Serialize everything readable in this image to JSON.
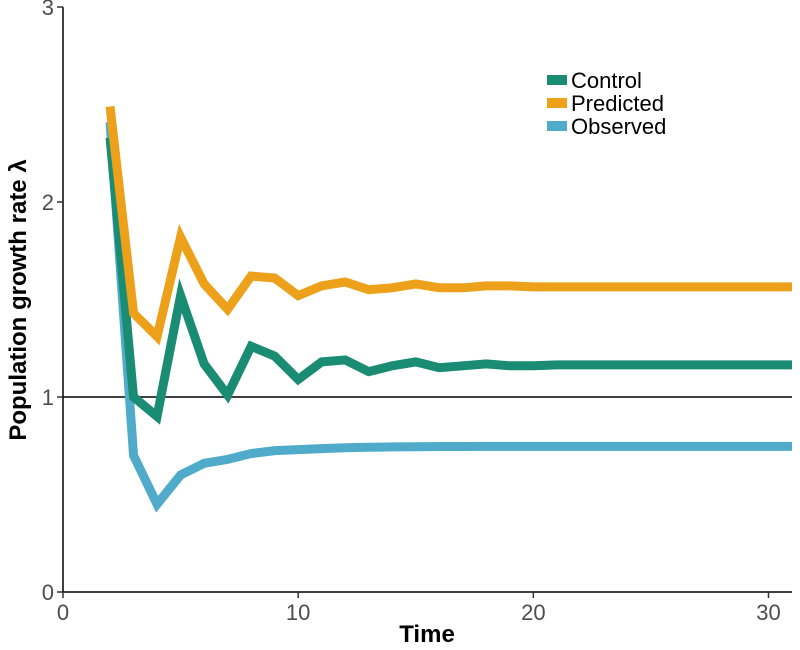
{
  "chart_data": {
    "type": "line",
    "title": "",
    "xlabel": "Time",
    "ylabel": "Population growth rate λ",
    "xlim": [
      0,
      31
    ],
    "ylim": [
      0,
      3
    ],
    "xticks": [
      0,
      10,
      20,
      30
    ],
    "yticks": [
      0,
      1,
      2,
      3
    ],
    "grid": false,
    "legend_position": "top-right",
    "reference_line_y": 1,
    "reference_line_color": "#000000",
    "x": [
      2,
      3,
      4,
      5,
      6,
      7,
      8,
      9,
      10,
      11,
      12,
      13,
      14,
      15,
      16,
      17,
      18,
      19,
      20,
      21,
      22,
      23,
      24,
      25,
      26,
      27,
      28,
      29,
      30,
      31
    ],
    "series": [
      {
        "name": "Control",
        "color": "#1a8c73",
        "values": [
          2.33,
          1.0,
          0.9,
          1.52,
          1.17,
          1.01,
          1.26,
          1.21,
          1.09,
          1.18,
          1.19,
          1.13,
          1.16,
          1.18,
          1.15,
          1.16,
          1.17,
          1.16,
          1.16,
          1.165,
          1.165,
          1.165,
          1.165,
          1.165,
          1.165,
          1.165,
          1.165,
          1.165,
          1.165,
          1.165
        ]
      },
      {
        "name": "Predicted",
        "color": "#eda01a",
        "values": [
          2.49,
          1.43,
          1.31,
          1.82,
          1.58,
          1.45,
          1.62,
          1.61,
          1.52,
          1.57,
          1.59,
          1.55,
          1.56,
          1.58,
          1.56,
          1.56,
          1.57,
          1.57,
          1.565,
          1.565,
          1.565,
          1.565,
          1.565,
          1.565,
          1.565,
          1.565,
          1.565,
          1.565,
          1.565,
          1.565
        ]
      },
      {
        "name": "Observed",
        "color": "#4fabc9",
        "values": [
          2.41,
          0.7,
          0.45,
          0.6,
          0.66,
          0.68,
          0.71,
          0.725,
          0.73,
          0.735,
          0.74,
          0.742,
          0.744,
          0.745,
          0.746,
          0.746,
          0.747,
          0.747,
          0.747,
          0.747,
          0.747,
          0.747,
          0.747,
          0.747,
          0.747,
          0.747,
          0.747,
          0.747,
          0.747,
          0.747
        ]
      }
    ]
  }
}
